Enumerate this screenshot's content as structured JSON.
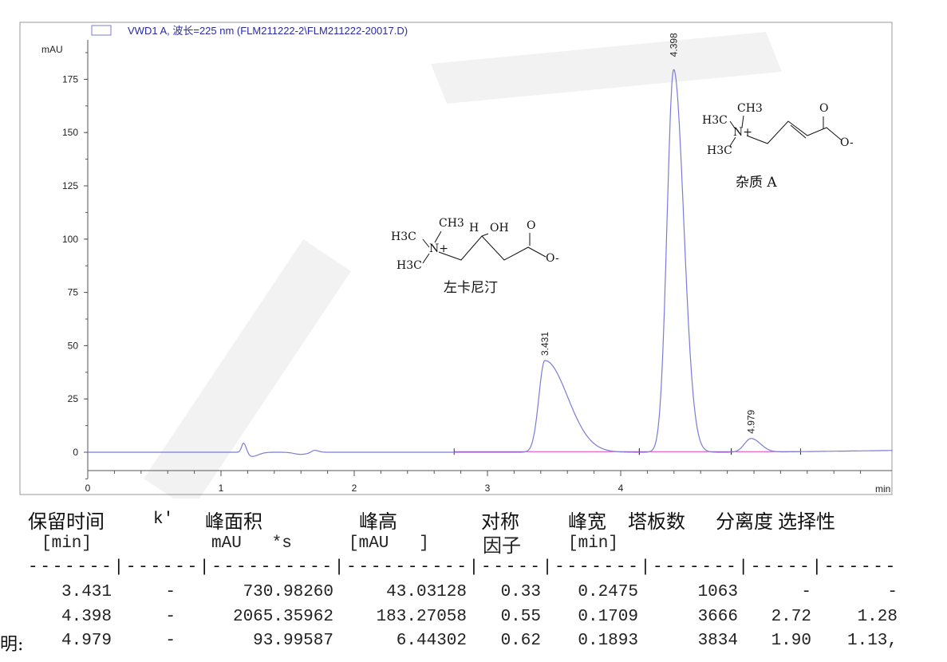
{
  "chart_data": {
    "type": "line",
    "legend": "VWD1 A, 波长=225 nm (FLM211222-2\\FLM211222-20017.D)",
    "legend_position": "top-left",
    "ylabel": "mAU",
    "xlabel": "min",
    "xlim": [
      0,
      6.04
    ],
    "ylim": [
      -20,
      202
    ],
    "xticks": [
      0,
      1,
      2,
      3,
      4
    ],
    "yticks": [
      0,
      25,
      50,
      75,
      100,
      125,
      150,
      175
    ],
    "grid": false,
    "trace_color": "#7b7bd6",
    "baseline_color": "#e040c0",
    "peaks": [
      {
        "rt": 3.431,
        "label": "3.431",
        "height": 43.03
      },
      {
        "rt": 4.398,
        "label": "4.398",
        "height": 183.27
      },
      {
        "rt": 4.979,
        "label": "4.979",
        "height": 6.44
      }
    ],
    "integration_baselines": [
      [
        2.75,
        4.14
      ],
      [
        4.14,
        4.83
      ],
      [
        4.83,
        5.35
      ]
    ],
    "structures": [
      {
        "name": "左卡尼汀",
        "atoms": [
          "H3C",
          "CH3",
          "H",
          "OH",
          "O",
          "N+",
          "H3C",
          "O-"
        ]
      },
      {
        "name": "杂质 A",
        "atoms": [
          "H3C",
          "CH3",
          "N+",
          "H3C",
          "O",
          "O-"
        ]
      }
    ]
  },
  "table": {
    "headers": [
      "保留时间",
      "k'",
      "峰面积",
      "峰高",
      "对称",
      "峰宽",
      "塔板数",
      "分离度",
      "选择性"
    ],
    "units": [
      "[min]",
      "mAU   *s",
      "[mAU   ]",
      "因子",
      "[min]"
    ],
    "separator": "-------|------|----------|----------|-----|-------|-------|-----|------",
    "rows": [
      [
        "3.431",
        "-",
        "730.98260",
        "43.03128",
        "0.33",
        "0.2475",
        "1063",
        "-",
        "-"
      ],
      [
        "4.398",
        "-",
        "2065.35962",
        "183.27058",
        "0.55",
        "0.1709",
        "3666",
        "2.72",
        "1.28"
      ],
      [
        "4.979",
        "-",
        "93.99587",
        "6.44302",
        "0.62",
        "0.1893",
        "3834",
        "1.90",
        "1.13,"
      ]
    ],
    "side_label": "明:"
  }
}
